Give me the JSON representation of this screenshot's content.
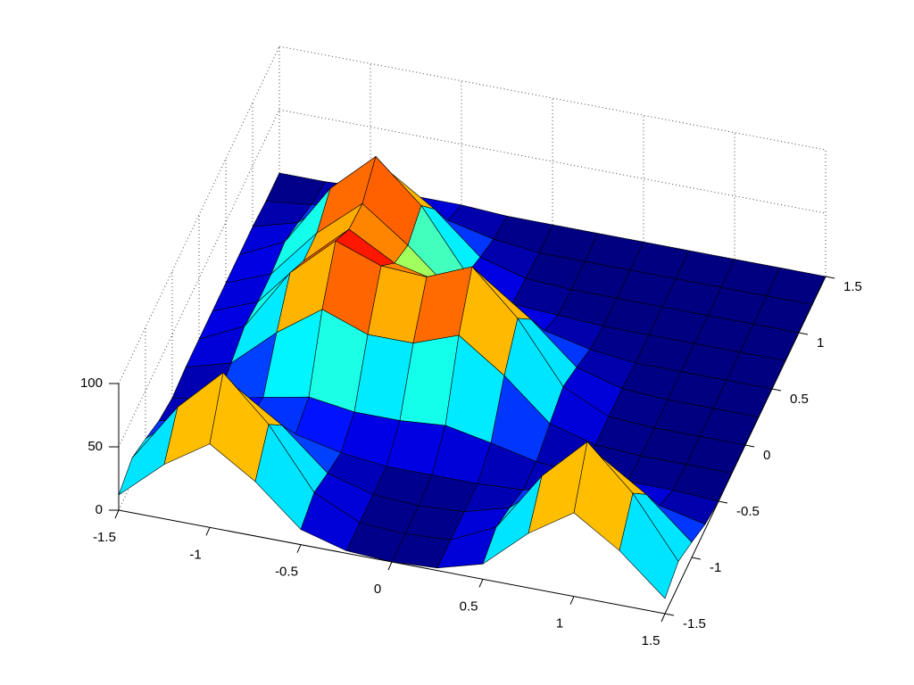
{
  "chart_data": {
    "type": "surface",
    "x": [
      -1.5,
      -1.25,
      -1,
      -0.75,
      -0.5,
      -0.25,
      0,
      0.25,
      0.5,
      0.75,
      1,
      1.25,
      1.5
    ],
    "y": [
      -1.5,
      -1.25,
      -1,
      -0.75,
      -0.5,
      -0.25,
      0,
      0.25,
      0.5,
      0.75,
      1,
      1.25,
      1.5
    ],
    "z": [
      [
        12,
        43,
        66,
        43,
        12,
        2,
        0,
        2,
        12,
        43,
        66,
        43,
        12
      ],
      [
        19,
        66,
        100,
        66,
        19,
        2,
        0,
        2,
        19,
        66,
        100,
        66,
        19
      ],
      [
        12,
        43,
        66,
        43,
        12,
        2,
        0,
        2,
        12,
        43,
        66,
        43,
        12
      ],
      [
        4,
        12,
        21,
        14,
        6,
        2,
        2,
        2,
        4,
        12,
        19,
        12,
        4
      ],
      [
        0,
        6,
        14,
        21,
        16,
        16,
        19,
        12,
        4,
        2,
        2,
        2,
        0
      ],
      [
        2,
        12,
        43,
        68,
        55,
        55,
        68,
        43,
        12,
        2,
        0,
        0,
        0
      ],
      [
        2,
        19,
        68,
        100,
        87,
        85,
        100,
        66,
        19,
        2,
        0,
        0,
        0
      ],
      [
        2,
        16,
        55,
        87,
        67,
        59,
        68,
        43,
        12,
        2,
        0,
        0,
        0
      ],
      [
        2,
        16,
        55,
        85,
        59,
        28,
        21,
        12,
        4,
        0,
        0,
        0,
        0
      ],
      [
        2,
        19,
        68,
        100,
        68,
        21,
        4,
        2,
        0,
        0,
        0,
        0,
        0
      ],
      [
        2,
        12,
        43,
        66,
        43,
        12,
        2,
        0,
        0,
        0,
        0,
        0,
        0
      ],
      [
        0,
        4,
        12,
        19,
        12,
        4,
        0,
        0,
        0,
        0,
        0,
        0,
        0
      ],
      [
        0,
        0,
        2,
        2,
        2,
        0,
        0,
        0,
        0,
        0,
        0,
        0,
        0
      ]
    ],
    "xlim": [
      -1.5,
      1.5
    ],
    "ylim": [
      -1.5,
      1.5
    ],
    "zlim": [
      0,
      100
    ],
    "xticks": [
      -1.5,
      -1,
      -0.5,
      0,
      0.5,
      1,
      1.5
    ],
    "yticks": [
      -1.5,
      -1,
      -0.5,
      0,
      0.5,
      1,
      1.5
    ],
    "zticks": [
      0,
      50,
      100
    ],
    "grid": true,
    "colormap": "jet"
  }
}
